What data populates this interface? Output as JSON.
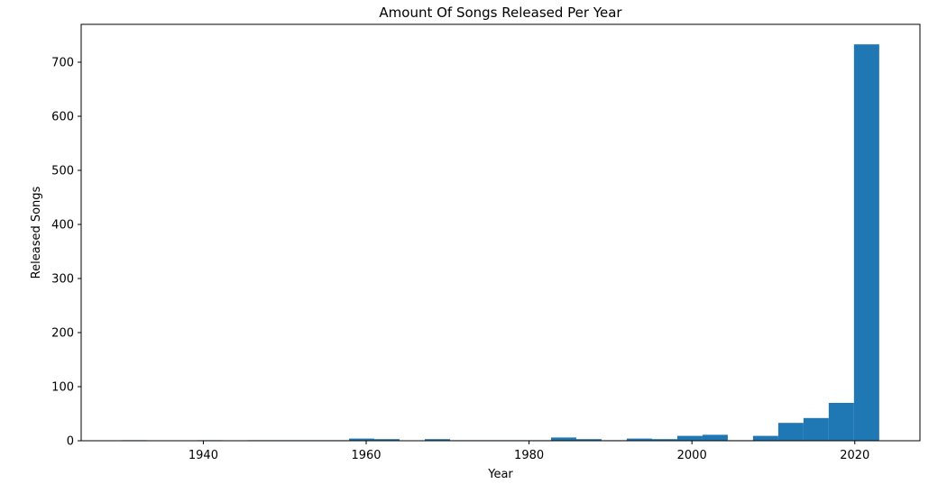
{
  "chart_data": {
    "type": "bar",
    "title": "Amount Of Songs Released Per Year",
    "xlabel": "Year",
    "ylabel": "Released Songs",
    "xlim": [
      1925,
      2028
    ],
    "ylim": [
      0,
      770
    ],
    "xticks": [
      1940,
      1960,
      1980,
      2000,
      2020
    ],
    "yticks": [
      0,
      100,
      200,
      300,
      400,
      500,
      600,
      700
    ],
    "bins": [
      {
        "x0": 1930.0,
        "x1": 1933.1,
        "value": 1
      },
      {
        "x0": 1933.1,
        "x1": 1936.2,
        "value": 0
      },
      {
        "x0": 1936.2,
        "x1": 1939.3,
        "value": 0
      },
      {
        "x0": 1939.3,
        "x1": 1942.4,
        "value": 1
      },
      {
        "x0": 1942.4,
        "x1": 1945.5,
        "value": 0
      },
      {
        "x0": 1945.5,
        "x1": 1948.6,
        "value": 1
      },
      {
        "x0": 1948.6,
        "x1": 1951.7,
        "value": 1
      },
      {
        "x0": 1951.7,
        "x1": 1954.8,
        "value": 1
      },
      {
        "x0": 1954.8,
        "x1": 1957.9,
        "value": 1
      },
      {
        "x0": 1957.9,
        "x1": 1961.0,
        "value": 4
      },
      {
        "x0": 1961.0,
        "x1": 1964.1,
        "value": 3
      },
      {
        "x0": 1964.1,
        "x1": 1967.2,
        "value": 0
      },
      {
        "x0": 1967.2,
        "x1": 1970.3,
        "value": 3
      },
      {
        "x0": 1970.3,
        "x1": 1973.4,
        "value": 1
      },
      {
        "x0": 1973.4,
        "x1": 1976.5,
        "value": 1
      },
      {
        "x0": 1976.5,
        "x1": 1979.6,
        "value": 1
      },
      {
        "x0": 1979.6,
        "x1": 1982.7,
        "value": 1
      },
      {
        "x0": 1982.7,
        "x1": 1985.8,
        "value": 6
      },
      {
        "x0": 1985.8,
        "x1": 1988.9,
        "value": 3
      },
      {
        "x0": 1988.9,
        "x1": 1992.0,
        "value": 1
      },
      {
        "x0": 1992.0,
        "x1": 1995.1,
        "value": 4
      },
      {
        "x0": 1995.1,
        "x1": 1998.2,
        "value": 3
      },
      {
        "x0": 1998.2,
        "x1": 2001.3,
        "value": 9
      },
      {
        "x0": 2001.3,
        "x1": 2004.4,
        "value": 11
      },
      {
        "x0": 2004.4,
        "x1": 2007.5,
        "value": 1
      },
      {
        "x0": 2007.5,
        "x1": 2010.6,
        "value": 9
      },
      {
        "x0": 2010.6,
        "x1": 2013.7,
        "value": 33
      },
      {
        "x0": 2013.7,
        "x1": 2016.8,
        "value": 42
      },
      {
        "x0": 2016.8,
        "x1": 2019.9,
        "value": 70
      },
      {
        "x0": 2019.9,
        "x1": 2023.0,
        "value": 733
      }
    ],
    "colors": {
      "bar": "#1f77b4",
      "axis": "#000000",
      "background": "#ffffff"
    },
    "grid": false,
    "legend": "none"
  }
}
